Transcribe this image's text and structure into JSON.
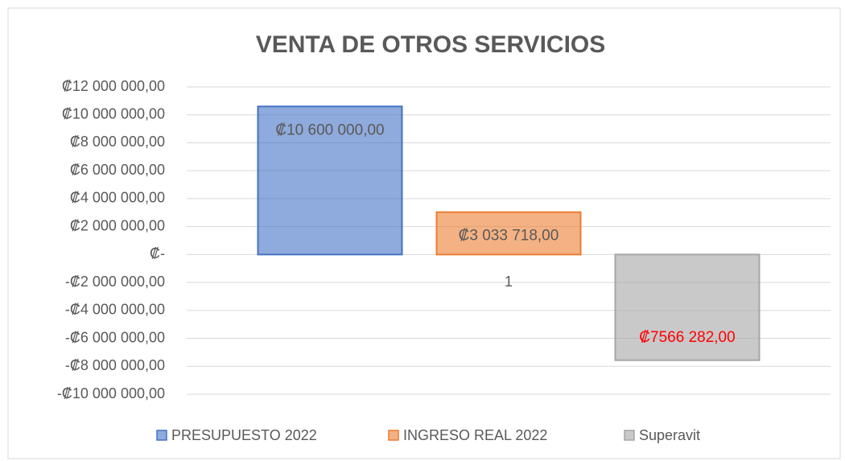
{
  "chart_data": {
    "type": "bar",
    "title": "VENTA DE OTROS SERVICIOS",
    "categories": [
      "1"
    ],
    "series": [
      {
        "name": "PRESUPUESTO 2022",
        "color": "#4472c4",
        "label_color": "#595959",
        "values": [
          10600000
        ],
        "value_labels": [
          "₡10 600 000,00"
        ]
      },
      {
        "name": "INGRESO REAL 2022",
        "color": "#ed7d31",
        "label_color": "#595959",
        "values": [
          3033718
        ],
        "value_labels": [
          "₡3 033 718,00"
        ]
      },
      {
        "name": "Superavit",
        "color": "#a5a5a5",
        "label_color": "#ff0000",
        "values": [
          -7566282
        ],
        "value_labels": [
          "₡7566 282,00"
        ]
      }
    ],
    "ylim": [
      -10000000,
      12000000
    ],
    "yticks": [
      {
        "value": -10000000,
        "label": "-₡10 000 000,00"
      },
      {
        "value": -8000000,
        "label": "-₡8 000 000,00"
      },
      {
        "value": -6000000,
        "label": "-₡6 000 000,00"
      },
      {
        "value": -4000000,
        "label": "-₡4 000 000,00"
      },
      {
        "value": -2000000,
        "label": "-₡2 000 000,00"
      },
      {
        "value": 0,
        "label": "₡-"
      },
      {
        "value": 2000000,
        "label": "₡2 000 000,00"
      },
      {
        "value": 4000000,
        "label": "₡4 000 000,00"
      },
      {
        "value": 6000000,
        "label": "₡6 000 000,00"
      },
      {
        "value": 8000000,
        "label": "₡8 000 000,00"
      },
      {
        "value": 10000000,
        "label": "₡10 000 000,00"
      },
      {
        "value": 12000000,
        "label": "₡12 000 000,00"
      }
    ],
    "grid": true,
    "legend": "bottom"
  }
}
